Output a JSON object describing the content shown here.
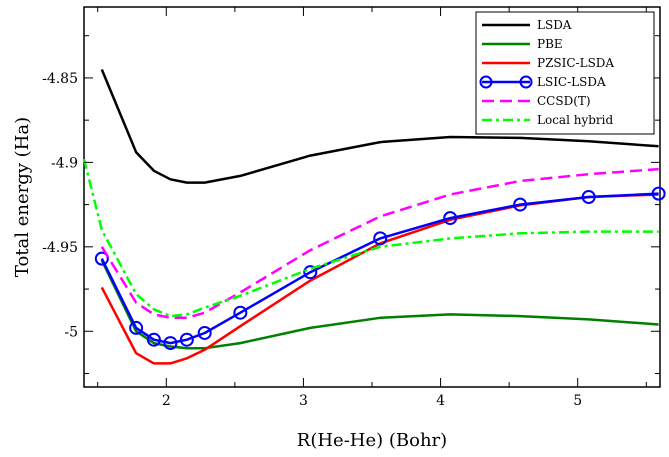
{
  "chart_data": {
    "type": "line",
    "title": "",
    "xlabel": "R(He-He) (Bohr)",
    "ylabel": "Total energy (Ha)",
    "xlim": [
      1.4,
      5.6
    ],
    "ylim": [
      -5.033,
      -4.808
    ],
    "x_ticks": [
      2,
      3,
      4,
      5
    ],
    "x_tick_labels": [
      "2",
      "3",
      "4",
      "5"
    ],
    "y_ticks": [
      -4.85,
      -4.9,
      -4.95,
      -5.0
    ],
    "y_tick_labels": [
      "-4.85",
      "-4.9",
      "-4.95",
      "-5"
    ],
    "grid": false,
    "legend_position": "top-right",
    "series": [
      {
        "name": "LSDA",
        "color": "#000000",
        "dash": "solid",
        "marker": "none",
        "x": [
          1.53,
          1.78,
          1.91,
          2.03,
          2.15,
          2.28,
          2.54,
          3.05,
          3.56,
          4.07,
          4.58,
          5.08,
          5.59
        ],
        "y": [
          -4.845,
          -4.894,
          -4.905,
          -4.91,
          -4.912,
          -4.912,
          -4.908,
          -4.896,
          -4.888,
          -4.885,
          -4.8855,
          -4.8875,
          -4.8905
        ]
      },
      {
        "name": "PBE",
        "color": "#008000",
        "dash": "solid",
        "marker": "none",
        "x": [
          1.53,
          1.78,
          1.91,
          2.03,
          2.15,
          2.28,
          2.54,
          3.05,
          3.56,
          4.07,
          4.58,
          5.08,
          5.59
        ],
        "y": [
          -4.958,
          -5.0,
          -5.007,
          -5.009,
          -5.01,
          -5.01,
          -5.007,
          -4.998,
          -4.992,
          -4.99,
          -4.991,
          -4.993,
          -4.996
        ]
      },
      {
        "name": "PZSIC-LSDA",
        "color": "#ff0000",
        "dash": "solid",
        "marker": "none",
        "x": [
          1.53,
          1.78,
          1.91,
          2.03,
          2.15,
          2.28,
          2.54,
          3.05,
          3.56,
          4.07,
          4.58,
          5.08,
          5.59
        ],
        "y": [
          -4.974,
          -5.013,
          -5.019,
          -5.019,
          -5.016,
          -5.011,
          -4.997,
          -4.97,
          -4.948,
          -4.934,
          -4.9255,
          -4.9205,
          -4.919
        ]
      },
      {
        "name": "LSIC-LSDA",
        "color": "#0000ff",
        "dash": "solid",
        "marker": "circle",
        "x": [
          1.53,
          1.78,
          1.91,
          2.03,
          2.15,
          2.28,
          2.54,
          3.05,
          3.56,
          4.07,
          4.58,
          5.08,
          5.59
        ],
        "y": [
          -4.957,
          -4.998,
          -5.005,
          -5.007,
          -5.005,
          -5.001,
          -4.989,
          -4.965,
          -4.945,
          -4.933,
          -4.925,
          -4.9205,
          -4.9185
        ]
      },
      {
        "name": "CCSD(T)",
        "color": "#ff00ff",
        "dash": "dashed",
        "marker": "none",
        "x": [
          1.53,
          1.78,
          1.91,
          2.03,
          2.15,
          2.28,
          2.54,
          3.05,
          3.56,
          4.07,
          4.58,
          5.08,
          5.59
        ],
        "y": [
          -4.95,
          -4.983,
          -4.99,
          -4.992,
          -4.992,
          -4.989,
          -4.977,
          -4.952,
          -4.932,
          -4.919,
          -4.911,
          -4.907,
          -4.904
        ]
      },
      {
        "name": "Local hybrid",
        "color": "#00ff00",
        "dash": "dashdot",
        "marker": "none",
        "x": [
          1.4,
          1.53,
          1.78,
          1.91,
          2.03,
          2.15,
          2.28,
          2.54,
          3.05,
          3.56,
          4.07,
          4.58,
          5.08,
          5.59
        ],
        "y": [
          -4.898,
          -4.94,
          -4.978,
          -4.987,
          -4.991,
          -4.99,
          -4.986,
          -4.979,
          -4.963,
          -4.95,
          -4.945,
          -4.942,
          -4.941,
          -4.941
        ]
      }
    ]
  }
}
